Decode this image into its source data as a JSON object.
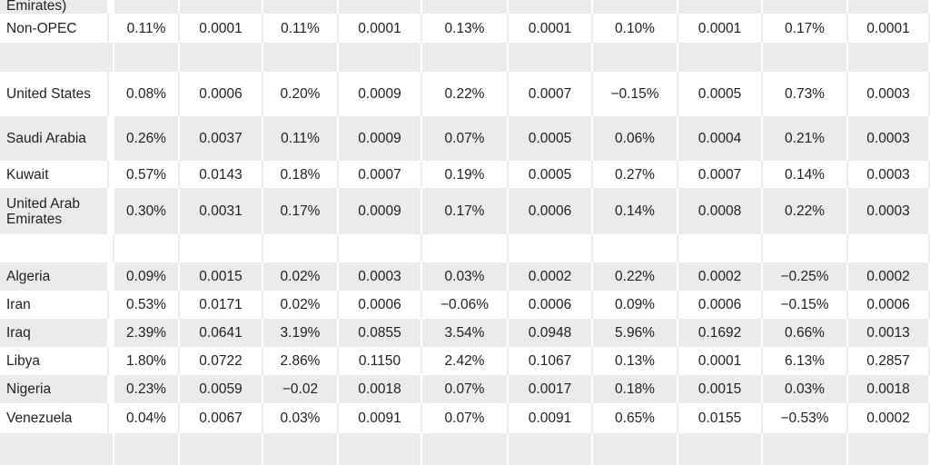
{
  "table": {
    "rows": [
      [
        "Emirates)"
      ],
      [
        "Non-OPEC",
        "0.11%",
        "0.0001",
        "0.11%",
        "0.0001",
        "0.13%",
        "0.0001",
        "0.10%",
        "0.0001",
        "0.17%",
        "0.0001"
      ],
      [
        "United States",
        "0.08%",
        "0.0006",
        "0.20%",
        "0.0009",
        "0.22%",
        "0.0007",
        "−0.15%",
        "0.0005",
        "0.73%",
        "0.0003"
      ],
      [
        "Saudi Arabia",
        "0.26%",
        "0.0037",
        "0.11%",
        "0.0009",
        "0.07%",
        "0.0005",
        "0.06%",
        "0.0004",
        "0.21%",
        "0.0003"
      ],
      [
        "Kuwait",
        "0.57%",
        "0.0143",
        "0.18%",
        "0.0007",
        "0.19%",
        "0.0005",
        "0.27%",
        "0.0007",
        "0.14%",
        "0.0003"
      ],
      [
        "United Arab Emirates",
        "0.30%",
        "0.0031",
        "0.17%",
        "0.0009",
        "0.17%",
        "0.0006",
        "0.14%",
        "0.0008",
        "0.22%",
        "0.0003"
      ],
      [
        "Algeria",
        "0.09%",
        "0.0015",
        "0.02%",
        "0.0003",
        "0.03%",
        "0.0002",
        "0.22%",
        "0.0002",
        "−0.25%",
        "0.0002"
      ],
      [
        "Iran",
        "0.53%",
        "0.0171",
        "0.02%",
        "0.0006",
        "−0.06%",
        "0.0006",
        "0.09%",
        "0.0006",
        "−0.15%",
        "0.0006"
      ],
      [
        "Iraq",
        "2.39%",
        "0.0641",
        "3.19%",
        "0.0855",
        "3.54%",
        "0.0948",
        "5.96%",
        "0.1692",
        "0.66%",
        "0.0013"
      ],
      [
        "Libya",
        "1.80%",
        "0.0722",
        "2.86%",
        "0.1150",
        "2.42%",
        "0.1067",
        "0.13%",
        "0.0001",
        "6.13%",
        "0.2857"
      ],
      [
        "Nigeria",
        "0.23%",
        "0.0059",
        "−0.02",
        "0.0018",
        "0.07%",
        "0.0017",
        "0.18%",
        "0.0015",
        "0.03%",
        "0.0018"
      ],
      [
        "Venezuela",
        "0.04%",
        "0.0067",
        "0.03%",
        "0.0091",
        "0.07%",
        "0.0091",
        "0.65%",
        "0.0155",
        "−0.53%",
        "0.0002"
      ]
    ]
  }
}
